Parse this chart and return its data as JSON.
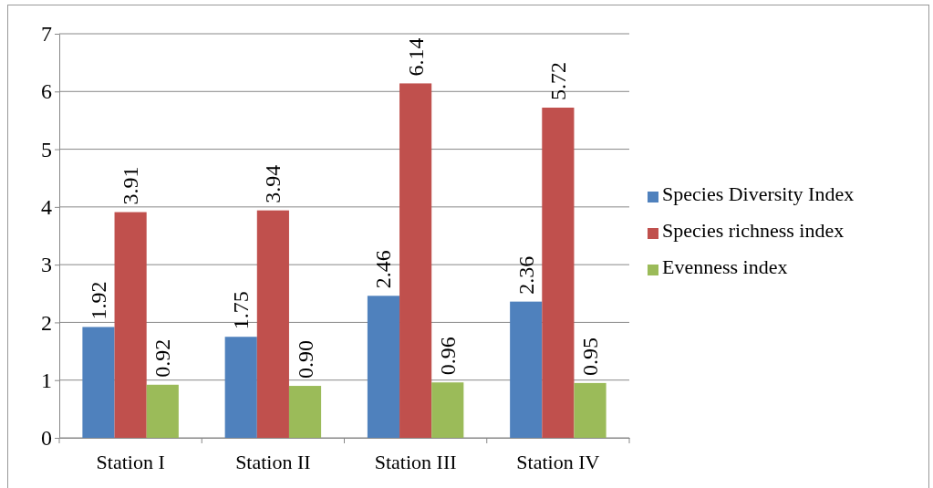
{
  "chart_data": {
    "type": "bar",
    "categories": [
      "Station I",
      "Station II",
      "Station III",
      "Station IV"
    ],
    "series": [
      {
        "name": "Species Diversity Index",
        "color": "#4f81bd",
        "values": [
          1.92,
          1.75,
          2.46,
          2.36
        ],
        "value_labels": [
          "1.92",
          "1.75",
          "2.46",
          "2.36"
        ]
      },
      {
        "name": "Species richness index",
        "color": "#c0504d",
        "values": [
          3.91,
          3.94,
          6.14,
          5.72
        ],
        "value_labels": [
          "3.91",
          "3.94",
          "6.14",
          "5.72"
        ]
      },
      {
        "name": "Evenness index",
        "color": "#9bbb59",
        "values": [
          0.92,
          0.9,
          0.96,
          0.95
        ],
        "value_labels": [
          "0.92",
          "0.90",
          "0.96",
          "0.95"
        ]
      }
    ],
    "ylim": [
      0,
      7
    ],
    "yticks": [
      0,
      1,
      2,
      3,
      4,
      5,
      6,
      7
    ],
    "grid": "y",
    "legend": "right"
  }
}
